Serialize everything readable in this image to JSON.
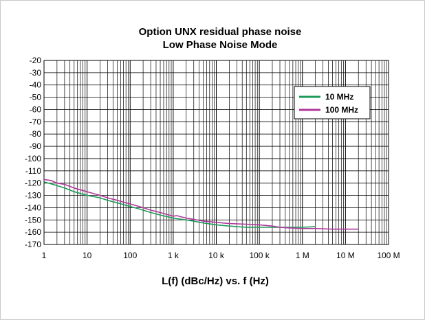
{
  "chart_data": {
    "type": "line",
    "title": "Option UNX residual phase noise",
    "subtitle": "Low Phase Noise Mode",
    "xlabel": "L(f) (dBc/Hz) vs. f (Hz)",
    "ylabel": "",
    "x_scale": "log",
    "xlim": [
      1,
      100000000
    ],
    "ylim": [
      -170,
      -20
    ],
    "grid": true,
    "legend_position": "top-right",
    "x_tick_labels": [
      "1",
      "10",
      "100",
      "1 k",
      "10 k",
      "100 k",
      "1 M",
      "10 M",
      "100 M"
    ],
    "y_tick_labels": [
      "-20",
      "-30",
      "-40",
      "-50",
      "-60",
      "-70",
      "-80",
      "-90",
      "-100",
      "-110",
      "-120",
      "-130",
      "-140",
      "-150",
      "-160",
      "-170"
    ],
    "series": [
      {
        "name": "10 MHz",
        "color": "#1e9a5a",
        "x": [
          1,
          2,
          3,
          5,
          10,
          20,
          30,
          50,
          100,
          200,
          300,
          500,
          1000,
          2000,
          3000,
          5000,
          10000,
          20000,
          30000,
          50000,
          100000,
          200000,
          300000,
          500000,
          1000000,
          2000000
        ],
        "y": [
          -119,
          -122,
          -124,
          -127,
          -130,
          -132,
          -134,
          -136,
          -139,
          -142,
          -144,
          -146,
          -148.5,
          -150,
          -151,
          -152.5,
          -154,
          -155,
          -155.5,
          -156,
          -156,
          -156,
          -156,
          -156,
          -156,
          -155.5
        ]
      },
      {
        "name": "100 MHz",
        "color": "#b0379b",
        "x": [
          1,
          1.5,
          2,
          3,
          5,
          10,
          20,
          30,
          50,
          100,
          200,
          300,
          500,
          800,
          1000,
          1200,
          2000,
          3000,
          5000,
          10000,
          20000,
          50000,
          100000,
          200000,
          300000,
          500000,
          1000000,
          2000000,
          5000000,
          10000000,
          20000000
        ],
        "y": [
          -117,
          -118,
          -120,
          -121,
          -124,
          -127,
          -130,
          -132,
          -134,
          -137,
          -140,
          -142,
          -144,
          -146,
          -147,
          -146.5,
          -148.5,
          -149.5,
          -151,
          -152,
          -153,
          -153.5,
          -154,
          -155,
          -156,
          -156.5,
          -157,
          -157,
          -157.5,
          -157.5,
          -157.5
        ]
      }
    ]
  }
}
